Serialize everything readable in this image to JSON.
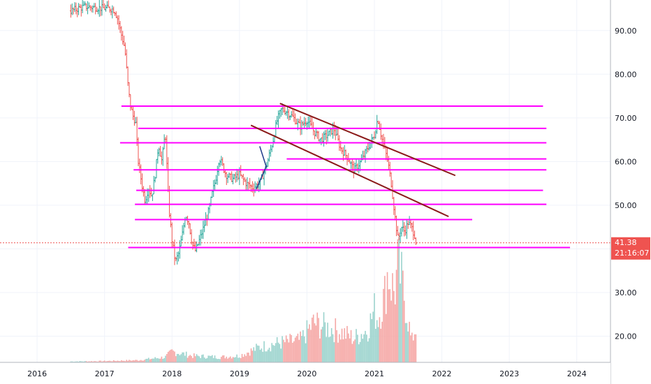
{
  "chart_data": {
    "type": "bar",
    "title": "",
    "xlabel": "",
    "ylabel": "",
    "ylim": [
      14,
      97
    ],
    "xlim": [
      2015.45,
      2024.5
    ],
    "grid": true,
    "y_ticks": [
      "20.00",
      "30.00",
      "40.00",
      "50.00",
      "60.00",
      "70.00",
      "80.00",
      "90.00"
    ],
    "x_ticks": [
      "2016",
      "2017",
      "2018",
      "2019",
      "2020",
      "2021",
      "2022",
      "2023",
      "2024"
    ],
    "last_price": "41.38",
    "countdown": "21:16:07",
    "colors": {
      "up": "#26a69a",
      "down": "#ef5350",
      "support": "#ff00ff",
      "channel": "#8b1a1a",
      "mark": "#1e3a8a"
    },
    "horizontal_levels": [
      {
        "y": 72.7,
        "x_start": 2017.25,
        "x_end": 2023.5
      },
      {
        "y": 67.6,
        "x_start": 2017.5,
        "x_end": 2023.55
      },
      {
        "y": 64.3,
        "x_start": 2017.23,
        "x_end": 2023.55
      },
      {
        "y": 60.6,
        "x_start": 2019.7,
        "x_end": 2023.55
      },
      {
        "y": 58.1,
        "x_start": 2017.43,
        "x_end": 2023.55
      },
      {
        "y": 53.4,
        "x_start": 2017.47,
        "x_end": 2023.5
      },
      {
        "y": 50.2,
        "x_start": 2017.45,
        "x_end": 2023.55
      },
      {
        "y": 46.7,
        "x_start": 2017.45,
        "x_end": 2022.45
      },
      {
        "y": 40.3,
        "x_start": 2017.35,
        "x_end": 2023.9
      }
    ],
    "channel_lines": [
      {
        "x1": 2019.6,
        "y1": 73.3,
        "x2": 2022.2,
        "y2": 56.8
      },
      {
        "x1": 2019.17,
        "y1": 68.3,
        "x2": 2022.1,
        "y2": 47.4
      }
    ],
    "marker_lines": [
      {
        "x1": 2019.25,
        "y1": 53.7,
        "x2": 2019.4,
        "y2": 59.0
      },
      {
        "x1": 2019.3,
        "y1": 63.5,
        "x2": 2019.4,
        "y2": 58.7
      }
    ],
    "price_path": [
      [
        2016.5,
        94.5
      ],
      [
        2016.7,
        95.5
      ],
      [
        2016.9,
        95.2
      ],
      [
        2017.1,
        95.0
      ],
      [
        2017.15,
        94.6
      ],
      [
        2017.2,
        92.5
      ],
      [
        2017.25,
        89.0
      ],
      [
        2017.3,
        86.0
      ],
      [
        2017.35,
        77.0
      ],
      [
        2017.38,
        73.0
      ],
      [
        2017.42,
        70.5
      ],
      [
        2017.46,
        69.0
      ],
      [
        2017.5,
        60.0
      ],
      [
        2017.55,
        55.0
      ],
      [
        2017.6,
        51.0
      ],
      [
        2017.65,
        54.0
      ],
      [
        2017.7,
        52.0
      ],
      [
        2017.75,
        57.0
      ],
      [
        2017.8,
        64.0
      ],
      [
        2017.85,
        60.0
      ],
      [
        2017.9,
        67.0
      ],
      [
        2017.95,
        50.0
      ],
      [
        2018.0,
        42.0
      ],
      [
        2018.05,
        37.0
      ],
      [
        2018.1,
        39.0
      ],
      [
        2018.15,
        43.0
      ],
      [
        2018.2,
        48.0
      ],
      [
        2018.25,
        46.0
      ],
      [
        2018.3,
        41.0
      ],
      [
        2018.35,
        39.5
      ],
      [
        2018.45,
        44.0
      ],
      [
        2018.55,
        49.0
      ],
      [
        2018.6,
        53.0
      ],
      [
        2018.65,
        56.0
      ],
      [
        2018.7,
        61.0
      ],
      [
        2018.8,
        57.0
      ],
      [
        2018.9,
        56.0
      ],
      [
        2019.0,
        57.0
      ],
      [
        2019.1,
        55.0
      ],
      [
        2019.2,
        54.0
      ],
      [
        2019.3,
        55.0
      ],
      [
        2019.4,
        59.0
      ],
      [
        2019.5,
        65.0
      ],
      [
        2019.55,
        69.0
      ],
      [
        2019.62,
        72.0
      ],
      [
        2019.7,
        71.5
      ],
      [
        2019.8,
        70.0
      ],
      [
        2019.9,
        68.0
      ],
      [
        2020.0,
        69.5
      ],
      [
        2020.1,
        67.0
      ],
      [
        2020.2,
        65.0
      ],
      [
        2020.3,
        66.0
      ],
      [
        2020.4,
        67.5
      ],
      [
        2020.5,
        63.0
      ],
      [
        2020.6,
        61.0
      ],
      [
        2020.7,
        58.0
      ],
      [
        2020.8,
        60.0
      ],
      [
        2020.9,
        63.0
      ],
      [
        2021.0,
        66.0
      ],
      [
        2021.05,
        70.0
      ],
      [
        2021.1,
        66.0
      ],
      [
        2021.15,
        63.0
      ],
      [
        2021.2,
        60.0
      ],
      [
        2021.25,
        55.0
      ],
      [
        2021.3,
        48.0
      ],
      [
        2021.35,
        42.0
      ],
      [
        2021.4,
        45.0
      ],
      [
        2021.45,
        44.0
      ],
      [
        2021.5,
        46.0
      ],
      [
        2021.55,
        45.0
      ],
      [
        2021.6,
        43.0
      ],
      [
        2021.62,
        41.38
      ]
    ],
    "volume_path": [
      [
        2016.5,
        0.2
      ],
      [
        2017.0,
        0.3
      ],
      [
        2017.5,
        0.5
      ],
      [
        2017.9,
        1.2
      ],
      [
        2018.0,
        2.5
      ],
      [
        2018.3,
        1.5
      ],
      [
        2018.7,
        1.2
      ],
      [
        2019.0,
        1.5
      ],
      [
        2019.3,
        3.5
      ],
      [
        2019.6,
        4.5
      ],
      [
        2019.9,
        5.0
      ],
      [
        2020.1,
        9.0
      ],
      [
        2020.3,
        8.0
      ],
      [
        2020.5,
        7.0
      ],
      [
        2020.7,
        5.5
      ],
      [
        2020.9,
        7.5
      ],
      [
        2021.0,
        12.0
      ],
      [
        2021.05,
        10.0
      ],
      [
        2021.15,
        15.0
      ],
      [
        2021.2,
        21.0
      ],
      [
        2021.25,
        18.0
      ],
      [
        2021.3,
        16.0
      ],
      [
        2021.35,
        22.0
      ],
      [
        2021.4,
        19.0
      ],
      [
        2021.5,
        10.0
      ],
      [
        2021.55,
        4.5
      ],
      [
        2021.6,
        7.5
      ]
    ]
  }
}
